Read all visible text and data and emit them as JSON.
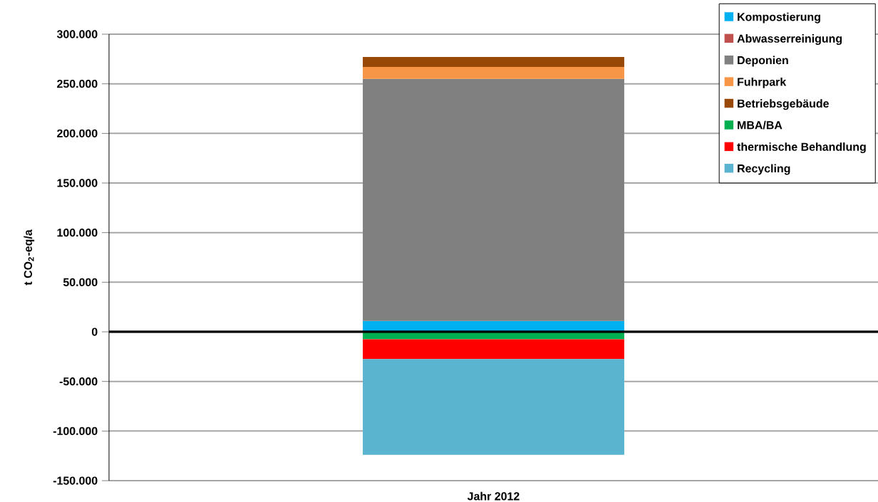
{
  "chart_data": {
    "type": "bar",
    "stacked": true,
    "categories": [
      "Jahr 2012"
    ],
    "ylabel": "t CO$_{2}$-eq/a",
    "ylim": [
      -150000,
      300000
    ],
    "yticks": [
      {
        "value": -150000,
        "label": "-150.000"
      },
      {
        "value": -100000,
        "label": "-100.000"
      },
      {
        "value": -50000,
        "label": "-50.000"
      },
      {
        "value": 0,
        "label": "0"
      },
      {
        "value": 50000,
        "label": "50.000"
      },
      {
        "value": 100000,
        "label": "100.000"
      },
      {
        "value": 150000,
        "label": "150.000"
      },
      {
        "value": 200000,
        "label": "200.000"
      },
      {
        "value": 250000,
        "label": "250.000"
      },
      {
        "value": 300000,
        "label": "300.000"
      }
    ],
    "grid": "y",
    "legend": "top right",
    "series": [
      {
        "name": "Kompostierung",
        "color": "#00b0f0",
        "values": [
          11000
        ]
      },
      {
        "name": "Abwasserreinigung",
        "color": "#c0504d",
        "values": [
          null
        ]
      },
      {
        "name": "Deponien",
        "color": "#808080",
        "values": [
          244000
        ]
      },
      {
        "name": "Fuhrpark",
        "color": "#f79646",
        "values": [
          12000
        ]
      },
      {
        "name": "Betriebsgebäude",
        "color": "#984807",
        "values": [
          10000
        ]
      },
      {
        "name": "MBA/BA",
        "color": "#00b050",
        "values": [
          -7500
        ]
      },
      {
        "name": "thermische Behandlung",
        "color": "#ff0000",
        "values": [
          -20000
        ]
      },
      {
        "name": "Recycling",
        "color": "#5ab4d0",
        "values": [
          -96500
        ]
      }
    ]
  }
}
